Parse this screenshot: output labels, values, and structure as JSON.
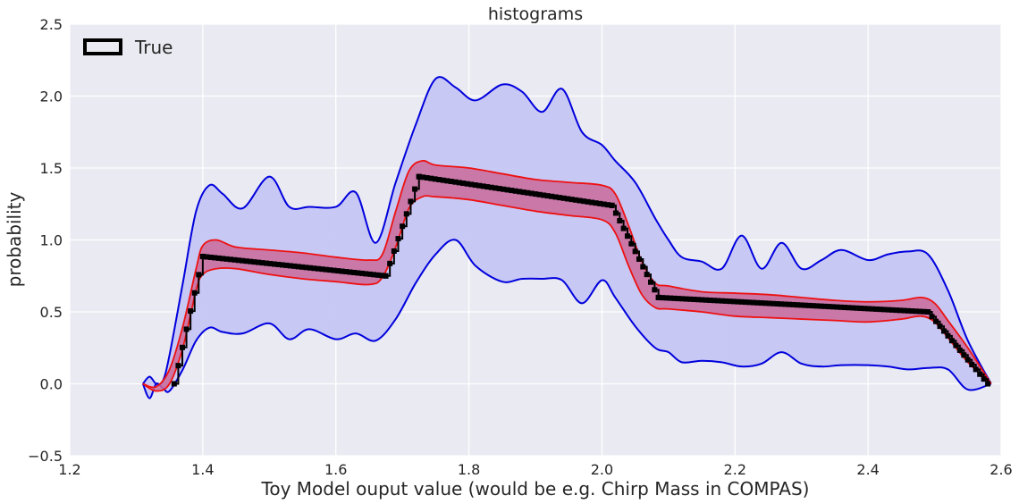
{
  "chart_data": {
    "type": "line",
    "title": "histograms",
    "xlabel": "Toy Model ouput value (would be e.g. Chirp Mass in COMPAS)",
    "ylabel": "probability",
    "xlim": [
      1.2,
      2.6
    ],
    "ylim": [
      -0.5,
      2.5
    ],
    "x_ticks": [
      1.2,
      1.4,
      1.6,
      1.8,
      2.0,
      2.2,
      2.4,
      2.6
    ],
    "y_ticks": [
      -0.5,
      0.0,
      0.5,
      1.0,
      1.5,
      2.0,
      2.5
    ],
    "x_tick_labels": [
      "1.2",
      "1.4",
      "1.6",
      "1.8",
      "2.0",
      "2.2",
      "2.4",
      "2.6"
    ],
    "y_tick_labels": [
      "−0.5",
      "0.0",
      "0.5",
      "1.0",
      "1.5",
      "2.0",
      "2.5"
    ],
    "grid": true,
    "legend_position": "top-left",
    "legend": [
      {
        "label": "True",
        "color": "#000000"
      }
    ],
    "colors": {
      "background": "#eaeaf2",
      "grid": "#ffffff",
      "outer_band_line": "#0000dd",
      "outer_band_fill": "#c6c6f4",
      "inner_band_line": "#ee1111",
      "inner_band_fill": "#c96a9a",
      "true_line": "#000000"
    },
    "series": [
      {
        "name": "True",
        "style": "step-markers",
        "segments": [
          {
            "x": [
              1.357,
              1.4
            ],
            "y": [
              0.0,
              0.885
            ]
          },
          {
            "x": [
              1.4,
              1.675
            ],
            "y": [
              0.885,
              0.75
            ]
          },
          {
            "x": [
              1.675,
              1.725
            ],
            "y": [
              0.75,
              1.44
            ]
          },
          {
            "x": [
              1.725,
              2.015
            ],
            "y": [
              1.44,
              1.24
            ]
          },
          {
            "x": [
              2.015,
              2.085
            ],
            "y": [
              1.24,
              0.6
            ]
          },
          {
            "x": [
              2.085,
              2.49
            ],
            "y": [
              0.6,
              0.5
            ]
          },
          {
            "x": [
              2.49,
              2.58
            ],
            "y": [
              0.5,
              0.0
            ]
          }
        ]
      },
      {
        "style": "band-inner",
        "x": [
          1.31,
          1.33,
          1.35,
          1.37,
          1.39,
          1.4,
          1.42,
          1.45,
          1.5,
          1.55,
          1.6,
          1.65,
          1.67,
          1.69,
          1.71,
          1.73,
          1.75,
          1.8,
          1.85,
          1.9,
          1.95,
          2.0,
          2.02,
          2.04,
          2.06,
          2.08,
          2.1,
          2.15,
          2.2,
          2.25,
          2.3,
          2.35,
          2.4,
          2.45,
          2.48,
          2.5,
          2.52,
          2.55,
          2.585
        ],
        "upper": [
          0.0,
          -0.02,
          0.1,
          0.4,
          0.8,
          0.96,
          1.0,
          0.95,
          0.93,
          0.91,
          0.88,
          0.86,
          0.9,
          1.2,
          1.48,
          1.55,
          1.52,
          1.5,
          1.46,
          1.42,
          1.4,
          1.38,
          1.32,
          1.1,
          0.85,
          0.7,
          0.68,
          0.64,
          0.63,
          0.62,
          0.6,
          0.58,
          0.57,
          0.58,
          0.6,
          0.56,
          0.44,
          0.25,
          0.0
        ],
        "lower": [
          0.0,
          -0.05,
          0.0,
          0.25,
          0.65,
          0.76,
          0.8,
          0.8,
          0.76,
          0.73,
          0.71,
          0.69,
          0.74,
          0.95,
          1.22,
          1.3,
          1.3,
          1.28,
          1.24,
          1.2,
          1.17,
          1.14,
          1.05,
          0.82,
          0.62,
          0.53,
          0.52,
          0.5,
          0.47,
          0.46,
          0.45,
          0.44,
          0.43,
          0.45,
          0.47,
          0.43,
          0.32,
          0.15,
          0.0
        ]
      },
      {
        "style": "band-outer",
        "x": [
          1.31,
          1.32,
          1.33,
          1.34,
          1.35,
          1.37,
          1.39,
          1.41,
          1.43,
          1.46,
          1.5,
          1.53,
          1.56,
          1.6,
          1.63,
          1.66,
          1.69,
          1.72,
          1.75,
          1.78,
          1.81,
          1.85,
          1.88,
          1.91,
          1.94,
          1.97,
          2.0,
          2.02,
          2.05,
          2.08,
          2.1,
          2.12,
          2.15,
          2.18,
          2.21,
          2.24,
          2.27,
          2.3,
          2.33,
          2.36,
          2.4,
          2.43,
          2.46,
          2.49,
          2.52,
          2.55,
          2.585
        ],
        "upper": [
          0.0,
          0.05,
          0.0,
          0.02,
          0.2,
          0.7,
          1.2,
          1.38,
          1.32,
          1.22,
          1.44,
          1.23,
          1.23,
          1.23,
          1.33,
          0.98,
          1.4,
          1.8,
          2.12,
          2.06,
          1.97,
          2.08,
          2.03,
          1.89,
          2.05,
          1.75,
          1.66,
          1.55,
          1.4,
          1.15,
          1.0,
          0.88,
          0.85,
          0.8,
          1.03,
          0.8,
          0.98,
          0.8,
          0.86,
          0.93,
          0.86,
          0.9,
          0.92,
          0.9,
          0.65,
          0.3,
          0.0
        ],
        "lower": [
          0.0,
          -0.1,
          0.0,
          -0.03,
          -0.05,
          0.1,
          0.3,
          0.39,
          0.36,
          0.35,
          0.42,
          0.31,
          0.38,
          0.31,
          0.35,
          0.3,
          0.45,
          0.7,
          0.9,
          1.0,
          0.82,
          0.71,
          0.73,
          0.73,
          0.72,
          0.56,
          0.72,
          0.6,
          0.4,
          0.25,
          0.22,
          0.15,
          0.16,
          0.15,
          0.12,
          0.14,
          0.22,
          0.14,
          0.12,
          0.13,
          0.13,
          0.12,
          0.1,
          0.11,
          0.1,
          -0.04,
          0.0
        ]
      }
    ]
  }
}
